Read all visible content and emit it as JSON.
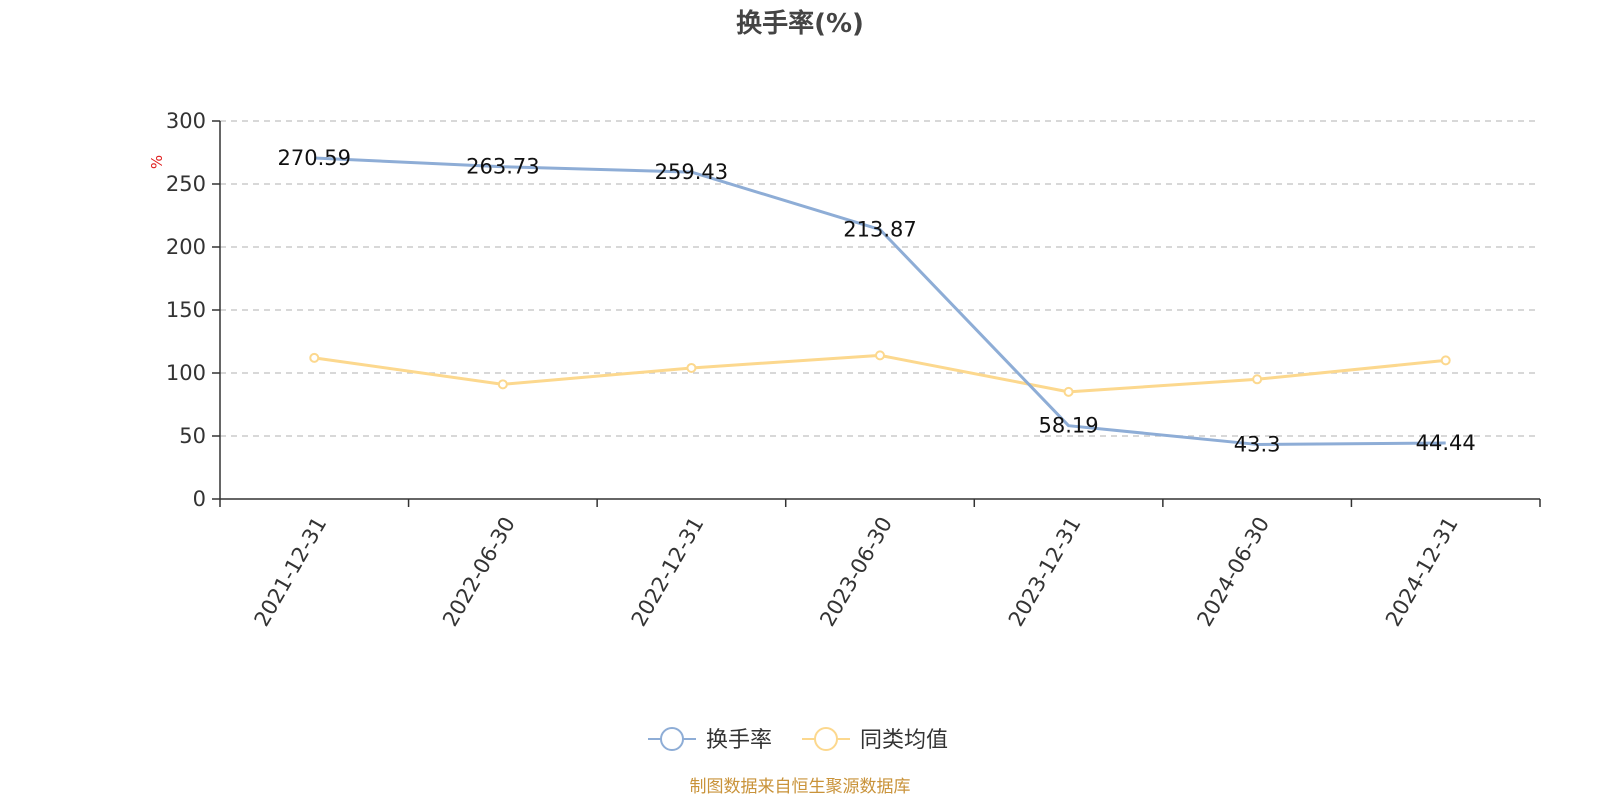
{
  "chart_data": {
    "type": "line",
    "title": "换手率(%)",
    "ylabel": "%",
    "xlabel": "",
    "categories": [
      "2021-12-31",
      "2022-06-30",
      "2022-12-31",
      "2023-06-30",
      "2023-12-31",
      "2024-06-30",
      "2024-12-31"
    ],
    "ylim": [
      0,
      300
    ],
    "yticks": [
      0,
      50,
      100,
      150,
      200,
      250,
      300
    ],
    "grid": true,
    "legend_position": "bottom-center",
    "series": [
      {
        "name": "换手率",
        "values": [
          270.59,
          263.73,
          259.43,
          213.87,
          58.19,
          43.3,
          44.44
        ],
        "data_labels": [
          "270.59",
          "263.73",
          "259.43",
          "213.87",
          "58.19",
          "43.3",
          "44.44"
        ],
        "color": "#8eadd6"
      },
      {
        "name": "同类均值",
        "values": [
          112,
          91,
          104,
          114,
          85,
          95,
          110
        ],
        "color": "#fcd88e"
      }
    ],
    "source": "制图数据来自恒生聚源数据库"
  }
}
